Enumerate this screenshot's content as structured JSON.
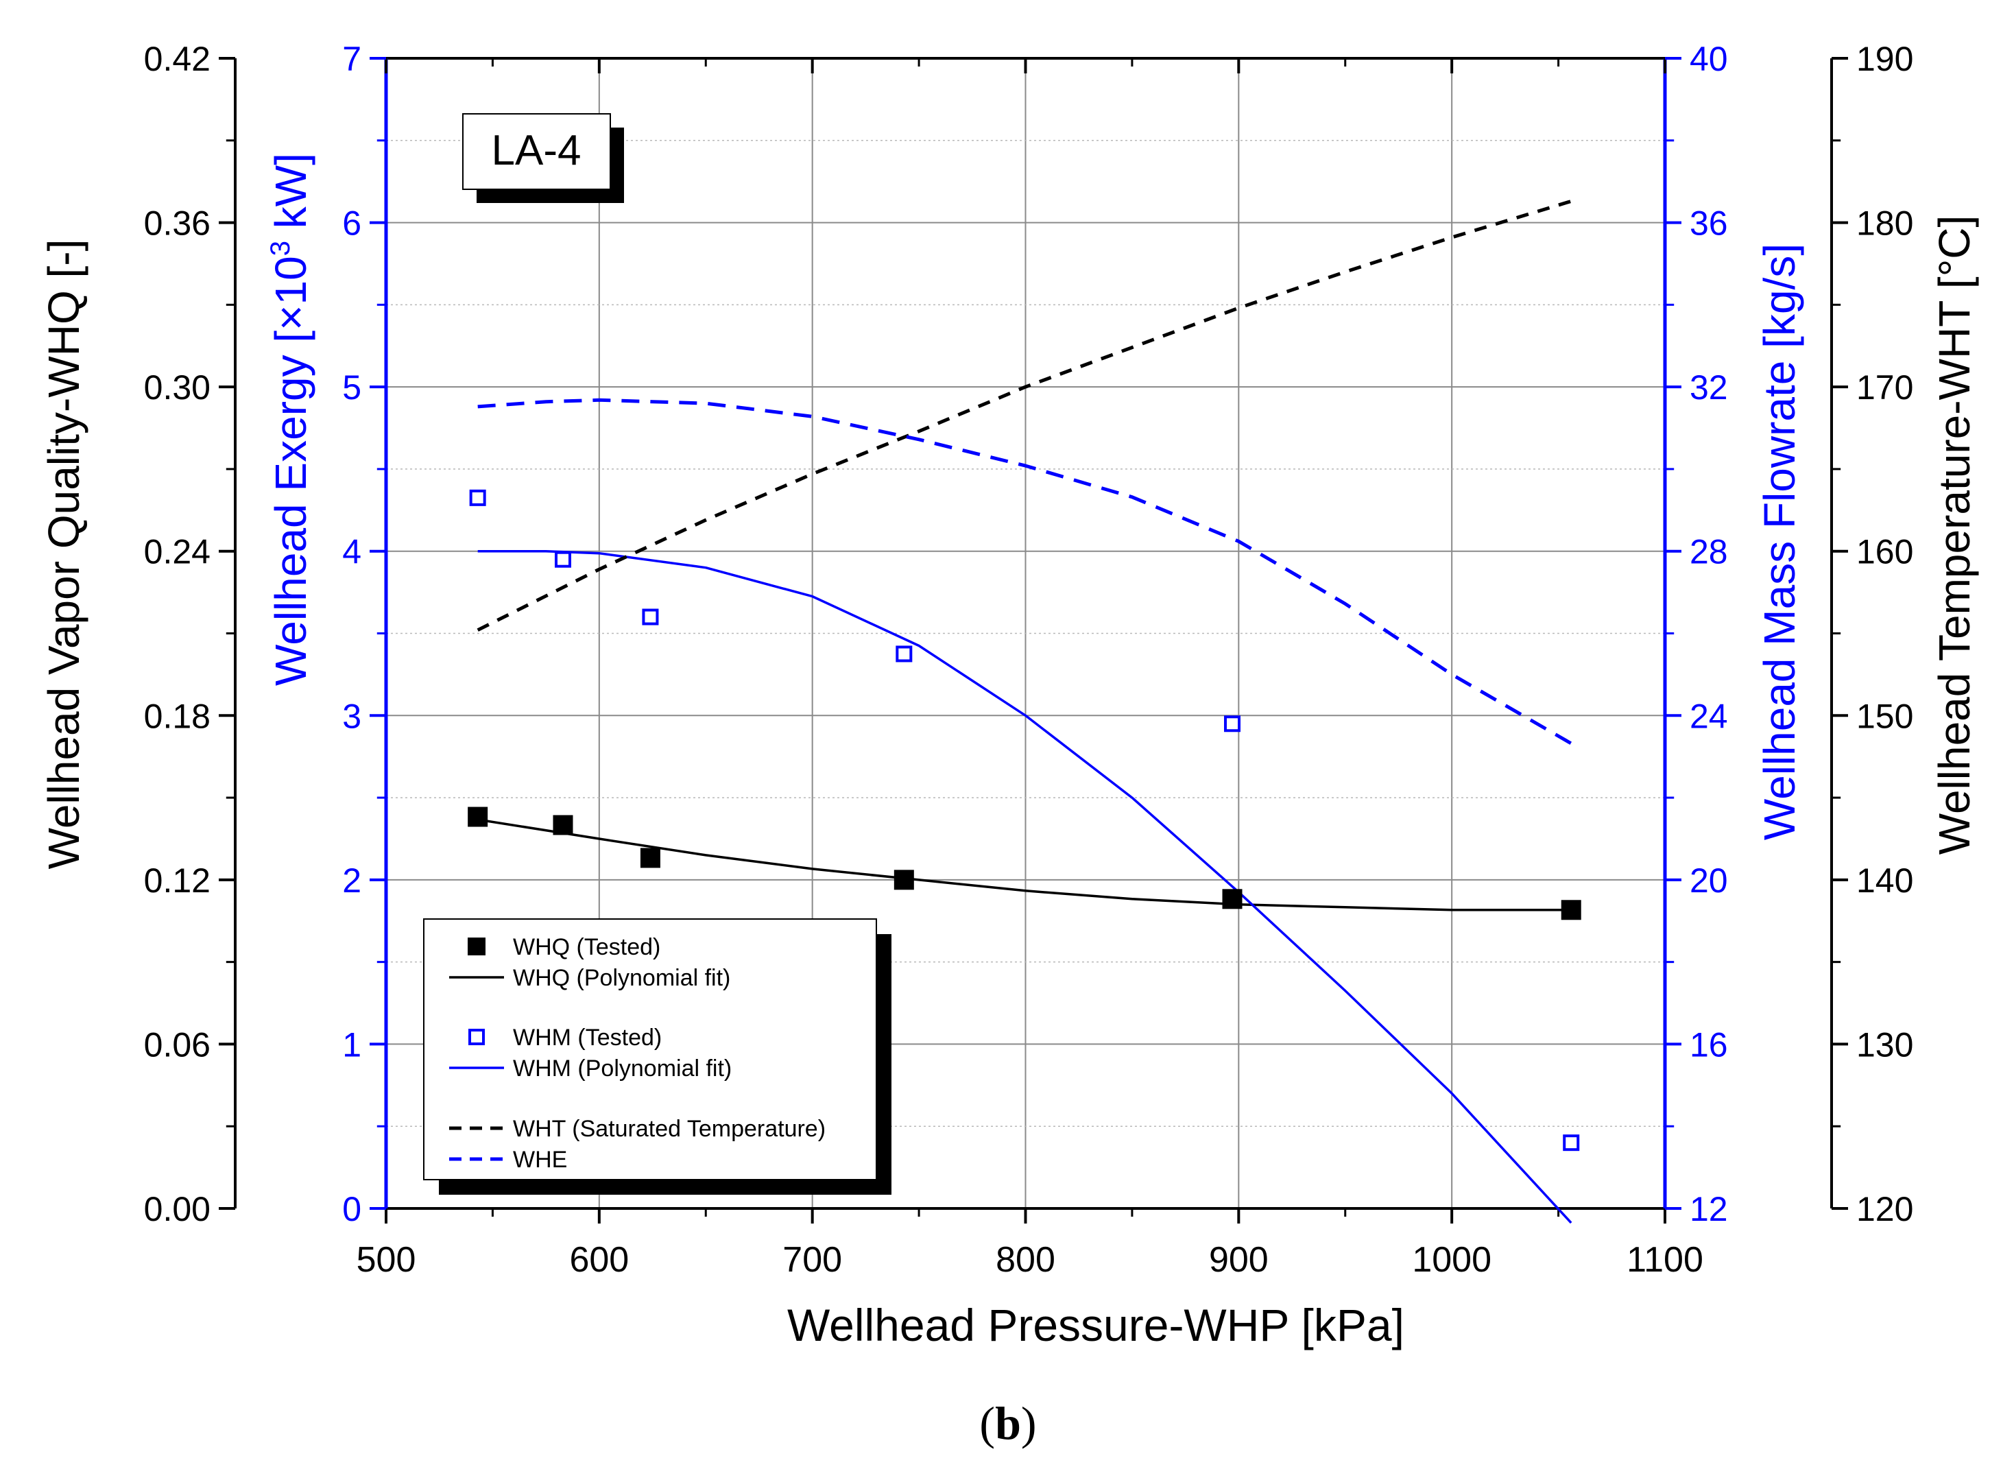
{
  "chart_data": {
    "type": "line",
    "panel_label": "LA-4",
    "caption": {
      "open": "(",
      "letter": "b",
      "close": ")"
    },
    "xlabel": "Wellhead Pressure-WHP [kPa]",
    "xlim": [
      500,
      1100
    ],
    "xticks": [
      "500",
      "600",
      "700",
      "800",
      "900",
      "1000",
      "1100"
    ],
    "axes": {
      "whq": {
        "label": "Wellhead Vapor Quality-WHQ [-]",
        "lim": [
          0,
          0.42
        ],
        "ticks": [
          "0.00",
          "0.06",
          "0.12",
          "0.18",
          "0.24",
          "0.30",
          "0.36",
          "0.42"
        ],
        "color": "#000000"
      },
      "whe": {
        "label_pre": "Wellhead Exergy [×10",
        "label_sup": "3",
        "label_post": " kW]",
        "lim": [
          0,
          7
        ],
        "ticks": [
          "0",
          "1",
          "2",
          "3",
          "4",
          "5",
          "6",
          "7"
        ],
        "color": "#0000ff"
      },
      "whm": {
        "label": "Wellhead Mass Flowrate [kg/s]",
        "lim": [
          12,
          40
        ],
        "ticks": [
          "12",
          "16",
          "20",
          "24",
          "28",
          "32",
          "36",
          "40"
        ],
        "color": "#0000ff"
      },
      "wht": {
        "label": "Wellhead Temperature-WHT [°C]",
        "lim": [
          120,
          190
        ],
        "ticks": [
          "120",
          "130",
          "140",
          "150",
          "160",
          "170",
          "180",
          "190"
        ],
        "color": "#000000"
      }
    },
    "series": [
      {
        "name": "WHQ (Tested)",
        "axis": "whq",
        "style": "marker-filled",
        "color": "#000000",
        "x": [
          543,
          583,
          624,
          743,
          897,
          1056
        ],
        "y": [
          0.143,
          0.14,
          0.128,
          0.12,
          0.113,
          0.109
        ]
      },
      {
        "name": "WHQ (Polynomial fit)",
        "axis": "whq",
        "style": "solid",
        "color": "#000000",
        "x": [
          543,
          600,
          650,
          700,
          750,
          800,
          850,
          900,
          950,
          1000,
          1056
        ],
        "y": [
          0.142,
          0.135,
          0.129,
          0.124,
          0.12,
          0.116,
          0.113,
          0.111,
          0.11,
          0.109,
          0.109
        ]
      },
      {
        "name": "WHM (Tested)",
        "axis": "whm",
        "style": "marker-open",
        "color": "#0000ff",
        "x": [
          543,
          583,
          624,
          743,
          897,
          1056
        ],
        "y": [
          29.3,
          27.8,
          26.4,
          25.5,
          23.8,
          13.6
        ]
      },
      {
        "name": "WHM (Polynomial fit)",
        "axis": "whm",
        "style": "solid",
        "color": "#0000ff",
        "x": [
          543,
          575,
          600,
          650,
          700,
          750,
          800,
          850,
          900,
          950,
          1000,
          1056
        ],
        "y": [
          28.0,
          28.0,
          27.95,
          27.6,
          26.9,
          25.7,
          24.0,
          22.0,
          19.7,
          17.3,
          14.8,
          11.65
        ]
      },
      {
        "name": "WHT  (Saturated Temperature)",
        "axis": "wht",
        "style": "dashed",
        "color": "#000000",
        "x": [
          543,
          600,
          650,
          700,
          750,
          800,
          850,
          900,
          950,
          1000,
          1056
        ],
        "y": [
          155.2,
          158.9,
          161.9,
          164.7,
          167.3,
          170.0,
          172.4,
          174.8,
          177.0,
          179.1,
          181.3
        ]
      },
      {
        "name": "WHE",
        "axis": "whe",
        "style": "dashed",
        "color": "#0000ff",
        "x": [
          543,
          575,
          600,
          650,
          700,
          750,
          800,
          850,
          900,
          950,
          1000,
          1056
        ],
        "y": [
          4.88,
          4.91,
          4.92,
          4.9,
          4.82,
          4.68,
          4.52,
          4.33,
          4.06,
          3.68,
          3.25,
          2.83
        ]
      }
    ],
    "legend": {
      "position": "bottom-left",
      "entries": [
        "WHQ (Tested)",
        "WHQ (Polynomial fit)",
        "WHM (Tested)",
        "WHM (Polynomial fit)",
        "WHT  (Saturated Temperature)",
        "WHE"
      ]
    }
  }
}
